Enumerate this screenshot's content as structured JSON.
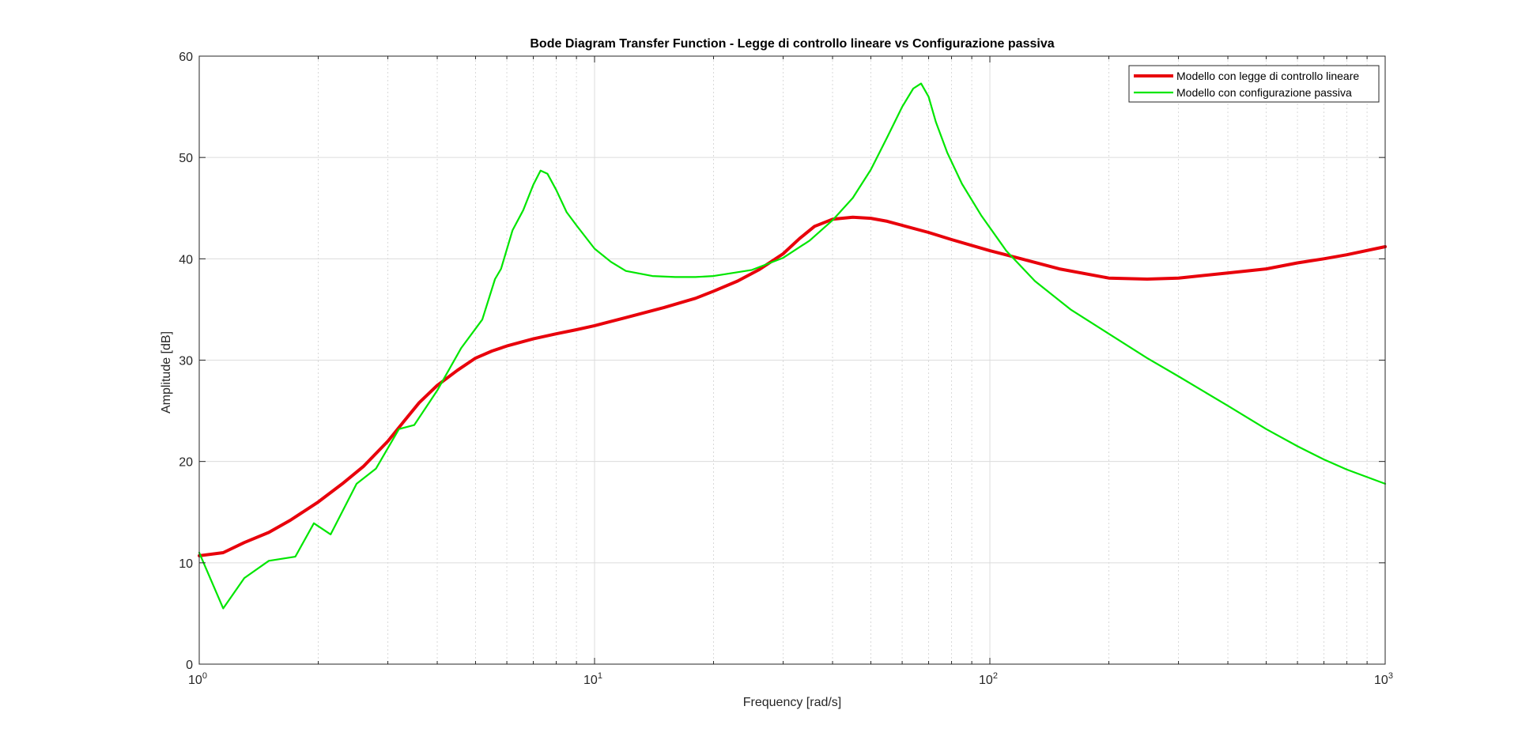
{
  "chart_data": {
    "type": "line",
    "title": "Bode Diagram Transfer Function - Legge di controllo lineare vs Configurazione passiva",
    "xlabel": "Frequency [rad/s]",
    "ylabel": "Amplitude [dB]",
    "xscale": "log",
    "xlim": [
      1,
      1000
    ],
    "ylim": [
      0,
      60
    ],
    "grid": true,
    "legend_position": "top-right",
    "x_ticks": [
      {
        "value": 1,
        "base": "10",
        "exp": "0"
      },
      {
        "value": 10,
        "base": "10",
        "exp": "1"
      },
      {
        "value": 100,
        "base": "10",
        "exp": "2"
      },
      {
        "value": 1000,
        "base": "10",
        "exp": "3"
      }
    ],
    "y_ticks": [
      "0",
      "10",
      "20",
      "30",
      "40",
      "50",
      "60"
    ],
    "series": [
      {
        "name": "Modello con legge di controllo lineare",
        "color": "#e8000b",
        "line_width": "thick",
        "x": [
          1,
          1.15,
          1.3,
          1.5,
          1.7,
          2,
          2.3,
          2.6,
          3,
          3.3,
          3.6,
          4,
          4.5,
          5,
          5.5,
          6,
          7,
          8,
          9,
          10,
          12,
          15,
          18,
          20,
          23,
          26,
          30,
          33,
          36,
          40,
          45,
          50,
          55,
          60,
          70,
          80,
          100,
          120,
          150,
          200,
          250,
          300,
          400,
          500,
          600,
          700,
          800,
          1000
        ],
        "y": [
          10.7,
          11.0,
          12.0,
          13.0,
          14.2,
          16.0,
          17.8,
          19.5,
          22.0,
          24.0,
          25.8,
          27.5,
          29.0,
          30.2,
          30.9,
          31.4,
          32.1,
          32.6,
          33.0,
          33.4,
          34.2,
          35.2,
          36.1,
          36.8,
          37.8,
          38.9,
          40.5,
          42.0,
          43.2,
          43.9,
          44.1,
          44.0,
          43.7,
          43.3,
          42.6,
          41.9,
          40.8,
          40.0,
          39.0,
          38.1,
          38.0,
          38.1,
          38.6,
          39.0,
          39.6,
          40.0,
          40.4,
          41.2
        ]
      },
      {
        "name": "Modello con configurazione passiva",
        "color": "#00e600",
        "line_width": "thin",
        "x": [
          1,
          1.15,
          1.3,
          1.5,
          1.75,
          1.95,
          2.15,
          2.5,
          2.8,
          3.2,
          3.5,
          4.0,
          4.6,
          5.2,
          5.6,
          5.8,
          6.2,
          6.6,
          7.0,
          7.3,
          7.6,
          8.0,
          8.5,
          9.0,
          10.0,
          11.0,
          12.0,
          14.0,
          16.0,
          18.0,
          20.0,
          25.0,
          30.0,
          35.0,
          40.0,
          45.0,
          50.0,
          55.0,
          60.0,
          64.0,
          67.0,
          70.0,
          73.0,
          78.0,
          85.0,
          95.0,
          110.0,
          130.0,
          160.0,
          200.0,
          250.0,
          300.0,
          400.0,
          500.0,
          600.0,
          700.0,
          800.0,
          1000.0
        ],
        "y": [
          11.0,
          5.5,
          8.5,
          10.2,
          10.6,
          13.9,
          12.8,
          17.8,
          19.3,
          23.2,
          23.6,
          27.0,
          31.2,
          34.0,
          38.0,
          39.0,
          42.8,
          44.8,
          47.3,
          48.7,
          48.4,
          46.8,
          44.6,
          43.3,
          41.0,
          39.7,
          38.8,
          38.3,
          38.2,
          38.2,
          38.3,
          38.9,
          40.1,
          41.8,
          43.8,
          46.0,
          48.8,
          52.0,
          55.0,
          56.8,
          57.3,
          56.0,
          53.5,
          50.5,
          47.4,
          44.3,
          40.8,
          37.8,
          35.0,
          32.6,
          30.2,
          28.4,
          25.5,
          23.2,
          21.5,
          20.2,
          19.2,
          17.8
        ]
      }
    ]
  }
}
